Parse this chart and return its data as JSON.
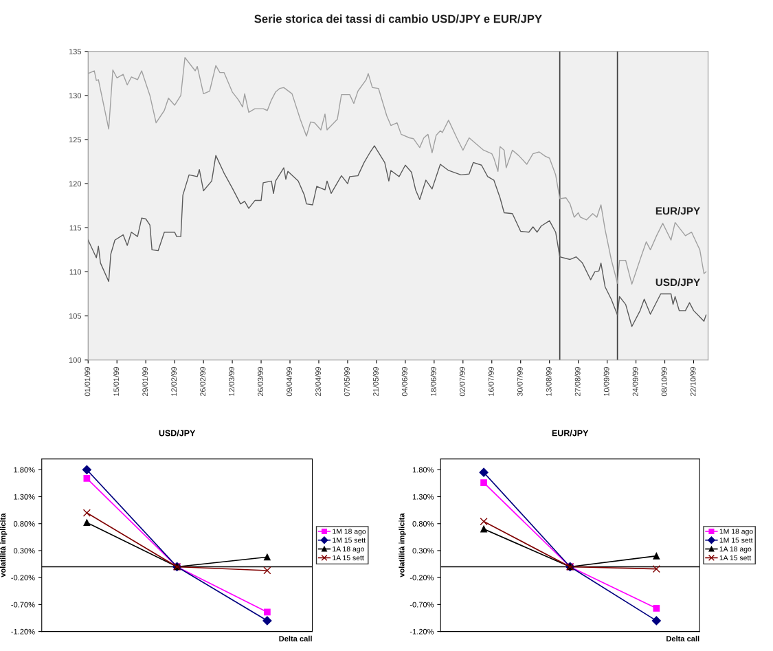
{
  "chart_data": [
    {
      "type": "line",
      "title": "Serie storica dei tassi di cambio USD/JPY e EUR/JPY",
      "grid": false,
      "legend": false,
      "marker": "none",
      "xlim": [
        "1999-01-01",
        "1999-10-29"
      ],
      "ylim": [
        100,
        135
      ],
      "yticks": [
        100,
        105,
        110,
        115,
        120,
        125,
        130,
        135
      ],
      "xticks": [
        {
          "value": "1999-01-01",
          "label": "01/01/99"
        },
        {
          "value": "1999-01-15",
          "label": "15/01/99"
        },
        {
          "value": "1999-01-29",
          "label": "29/01/99"
        },
        {
          "value": "1999-02-12",
          "label": "12/02/99"
        },
        {
          "value": "1999-02-26",
          "label": "26/02/99"
        },
        {
          "value": "1999-03-12",
          "label": "12/03/99"
        },
        {
          "value": "1999-03-26",
          "label": "26/03/99"
        },
        {
          "value": "1999-04-09",
          "label": "09/04/99"
        },
        {
          "value": "1999-04-23",
          "label": "23/04/99"
        },
        {
          "value": "1999-05-07",
          "label": "07/05/99"
        },
        {
          "value": "1999-05-21",
          "label": "21/05/99"
        },
        {
          "value": "1999-06-04",
          "label": "04/06/99"
        },
        {
          "value": "1999-06-18",
          "label": "18/06/99"
        },
        {
          "value": "1999-07-02",
          "label": "02/07/99"
        },
        {
          "value": "1999-07-16",
          "label": "16/07/99"
        },
        {
          "value": "1999-07-30",
          "label": "30/07/99"
        },
        {
          "value": "1999-08-13",
          "label": "13/08/99"
        },
        {
          "value": "1999-08-27",
          "label": "27/08/99"
        },
        {
          "value": "1999-09-10",
          "label": "10/09/99"
        },
        {
          "value": "1999-09-24",
          "label": "24/09/99"
        },
        {
          "value": "1999-10-08",
          "label": "08/10/99"
        },
        {
          "value": "1999-10-22",
          "label": "22/10/99"
        }
      ],
      "ref_lines": [
        {
          "axis": "x",
          "value": "1999-08-18",
          "label": null,
          "color": "#404040"
        },
        {
          "axis": "x",
          "value": "1999-09-15",
          "label": null,
          "color": "#404040"
        }
      ],
      "series": [
        {
          "name": "EUR/JPY",
          "color": "#a0a0a0",
          "x": [
            "1999-01-01",
            "1999-01-04",
            "1999-01-05",
            "1999-01-06",
            "1999-01-11",
            "1999-01-13",
            "1999-01-15",
            "1999-01-18",
            "1999-01-20",
            "1999-01-22",
            "1999-01-25",
            "1999-01-27",
            "1999-01-31",
            "1999-02-03",
            "1999-02-07",
            "1999-02-09",
            "1999-02-12",
            "1999-02-15",
            "1999-02-17",
            "1999-02-22",
            "1999-02-23",
            "1999-02-26",
            "1999-03-01",
            "1999-03-04",
            "1999-03-06",
            "1999-03-08",
            "1999-03-12",
            "1999-03-15",
            "1999-03-17",
            "1999-03-18",
            "1999-03-20",
            "1999-03-23",
            "1999-03-27",
            "1999-03-29",
            "1999-03-31",
            "1999-04-02",
            "1999-04-04",
            "1999-04-06",
            "1999-04-10",
            "1999-04-14",
            "1999-04-17",
            "1999-04-19",
            "1999-04-21",
            "1999-04-24",
            "1999-04-26",
            "1999-04-27",
            "1999-05-02",
            "1999-05-04",
            "1999-05-08",
            "1999-05-10",
            "1999-05-12",
            "1999-05-16",
            "1999-05-17",
            "1999-05-19",
            "1999-05-22",
            "1999-05-26",
            "1999-05-28",
            "1999-05-31",
            "1999-06-02",
            "1999-06-06",
            "1999-06-08",
            "1999-06-11",
            "1999-06-13",
            "1999-06-15",
            "1999-06-17",
            "1999-06-19",
            "1999-06-21",
            "1999-06-22",
            "1999-06-25",
            "1999-06-29",
            "1999-07-02",
            "1999-07-05",
            "1999-07-08",
            "1999-07-12",
            "1999-07-16",
            "1999-07-17",
            "1999-07-19",
            "1999-07-20",
            "1999-07-22",
            "1999-07-23",
            "1999-07-26",
            "1999-07-29",
            "1999-08-02",
            "1999-08-05",
            "1999-08-08",
            "1999-08-11",
            "1999-08-13",
            "1999-08-16",
            "1999-08-18",
            "1999-08-21",
            "1999-08-23",
            "1999-08-25",
            "1999-08-27",
            "1999-08-28",
            "1999-08-31",
            "1999-09-03",
            "1999-09-05",
            "1999-09-07",
            "1999-09-09",
            "1999-09-12",
            "1999-09-15",
            "1999-09-16",
            "1999-09-19",
            "1999-09-22",
            "1999-09-26",
            "1999-09-29",
            "1999-10-01",
            "1999-10-04",
            "1999-10-07",
            "1999-10-11",
            "1999-10-13",
            "1999-10-18",
            "1999-10-21",
            "1999-10-25",
            "1999-10-27",
            "1999-10-28"
          ],
          "values": [
            132.5,
            132.8,
            131.7,
            131.8,
            126.2,
            132.9,
            132.0,
            132.4,
            131.2,
            132.1,
            131.8,
            132.8,
            130.0,
            126.9,
            128.3,
            129.7,
            128.9,
            130.0,
            134.3,
            132.8,
            133.3,
            130.2,
            130.5,
            133.4,
            132.6,
            132.6,
            130.4,
            129.5,
            128.7,
            130.2,
            128.1,
            128.5,
            128.5,
            128.3,
            129.5,
            130.4,
            130.8,
            130.9,
            130.2,
            127.3,
            125.4,
            127.0,
            126.9,
            126.1,
            127.9,
            126.1,
            127.3,
            130.1,
            130.1,
            129.1,
            130.5,
            131.8,
            132.5,
            130.9,
            130.8,
            127.7,
            126.6,
            126.9,
            125.6,
            125.2,
            125.1,
            124.1,
            125.2,
            125.6,
            123.5,
            125.5,
            126.0,
            125.8,
            127.2,
            125.2,
            123.8,
            125.2,
            124.6,
            123.8,
            123.4,
            122.9,
            121.4,
            124.2,
            123.8,
            121.8,
            123.8,
            123.2,
            122.2,
            123.4,
            123.6,
            123.1,
            122.9,
            121.0,
            118.3,
            118.4,
            117.7,
            116.2,
            116.7,
            116.2,
            115.9,
            116.6,
            116.2,
            117.6,
            114.8,
            111.4,
            108.7,
            111.3,
            111.3,
            108.6,
            111.4,
            113.4,
            112.5,
            114.1,
            115.5,
            113.6,
            115.6,
            114.1,
            114.5,
            112.5,
            109.8,
            110.0
          ]
        },
        {
          "name": "USD/JPY",
          "color": "#5a5a5a",
          "x": [
            "1999-01-01",
            "1999-01-05",
            "1999-01-06",
            "1999-01-07",
            "1999-01-11",
            "1999-01-12",
            "1999-01-14",
            "1999-01-18",
            "1999-01-20",
            "1999-01-22",
            "1999-01-25",
            "1999-01-27",
            "1999-01-29",
            "1999-01-31",
            "1999-02-01",
            "1999-02-04",
            "1999-02-07",
            "1999-02-12",
            "1999-02-13",
            "1999-02-15",
            "1999-02-16",
            "1999-02-19",
            "1999-02-23",
            "1999-02-24",
            "1999-02-26",
            "1999-03-02",
            "1999-03-04",
            "1999-03-08",
            "1999-03-12",
            "1999-03-16",
            "1999-03-18",
            "1999-03-20",
            "1999-03-23",
            "1999-03-26",
            "1999-03-27",
            "1999-03-31",
            "1999-04-01",
            "1999-04-02",
            "1999-04-06",
            "1999-04-07",
            "1999-04-08",
            "1999-04-13",
            "1999-04-16",
            "1999-04-17",
            "1999-04-20",
            "1999-04-22",
            "1999-04-26",
            "1999-04-27",
            "1999-04-29",
            "1999-05-04",
            "1999-05-07",
            "1999-05-08",
            "1999-05-12",
            "1999-05-15",
            "1999-05-18",
            "1999-05-20",
            "1999-05-25",
            "1999-05-27",
            "1999-05-28",
            "1999-06-01",
            "1999-06-04",
            "1999-06-07",
            "1999-06-09",
            "1999-06-11",
            "1999-06-14",
            "1999-06-17",
            "1999-06-21",
            "1999-06-25",
            "1999-07-01",
            "1999-07-05",
            "1999-07-07",
            "1999-07-11",
            "1999-07-14",
            "1999-07-17",
            "1999-07-20",
            "1999-07-22",
            "1999-07-26",
            "1999-07-30",
            "1999-08-03",
            "1999-08-05",
            "1999-08-07",
            "1999-08-09",
            "1999-08-13",
            "1999-08-16",
            "1999-08-18",
            "1999-08-23",
            "1999-08-26",
            "1999-08-29",
            "1999-09-02",
            "1999-09-04",
            "1999-09-06",
            "1999-09-07",
            "1999-09-09",
            "1999-09-12",
            "1999-09-15",
            "1999-09-16",
            "1999-09-19",
            "1999-09-22",
            "1999-09-26",
            "1999-09-28",
            "1999-10-01",
            "1999-10-06",
            "1999-10-11",
            "1999-10-12",
            "1999-10-13",
            "1999-10-15",
            "1999-10-18",
            "1999-10-20",
            "1999-10-22",
            "1999-10-27",
            "1999-10-28"
          ],
          "values": [
            113.6,
            111.6,
            112.9,
            111.0,
            108.9,
            112.0,
            113.6,
            114.2,
            113.0,
            114.5,
            114.0,
            116.1,
            116.0,
            115.3,
            112.5,
            112.4,
            114.5,
            114.5,
            114.0,
            114.0,
            118.7,
            121.0,
            120.8,
            121.6,
            119.2,
            120.3,
            123.2,
            121.2,
            119.5,
            117.7,
            118.0,
            117.2,
            118.1,
            118.1,
            120.1,
            120.3,
            118.9,
            120.3,
            121.8,
            120.5,
            121.4,
            120.3,
            118.7,
            117.7,
            117.6,
            119.7,
            119.3,
            120.3,
            118.9,
            120.9,
            120.0,
            120.8,
            120.9,
            122.4,
            123.6,
            124.3,
            122.4,
            120.3,
            121.5,
            120.8,
            122.1,
            121.3,
            119.3,
            118.2,
            120.4,
            119.4,
            122.2,
            121.5,
            121.0,
            121.1,
            122.4,
            122.1,
            120.8,
            120.4,
            118.4,
            116.7,
            116.6,
            114.6,
            114.5,
            115.1,
            114.5,
            115.2,
            115.8,
            114.5,
            111.7,
            111.4,
            111.7,
            111.0,
            109.1,
            110.0,
            110.1,
            111.0,
            108.3,
            106.9,
            105.1,
            107.2,
            106.3,
            103.8,
            105.6,
            106.9,
            105.2,
            107.5,
            107.5,
            106.3,
            107.2,
            105.6,
            105.6,
            106.5,
            105.6,
            104.4,
            105.1
          ]
        }
      ]
    },
    {
      "type": "line",
      "title": "USD/JPY",
      "ylabel": "volatilità implicita",
      "xlabel": "Delta call",
      "categories": [
        null,
        null,
        null
      ],
      "grid": false,
      "legend": "right",
      "ylim": [
        -1.2,
        2.0
      ],
      "yticks": [
        {
          "value": -1.2,
          "label": "-1.20%"
        },
        {
          "value": -0.7,
          "label": "-0.70%"
        },
        {
          "value": -0.2,
          "label": "-0.20%"
        },
        {
          "value": 0.3,
          "label": "0.30%"
        },
        {
          "value": 0.8,
          "label": "0.80%"
        },
        {
          "value": 1.3,
          "label": "1.30%"
        },
        {
          "value": 1.8,
          "label": "1.80%"
        }
      ],
      "series": [
        {
          "name": "1M 18 ago",
          "color": "#ff00ff",
          "marker": "square",
          "values": [
            1.64,
            0,
            -0.84
          ]
        },
        {
          "name": "1M 15 sett",
          "color": "#000080",
          "marker": "diamond",
          "values": [
            1.8,
            0,
            -1.0
          ]
        },
        {
          "name": "1A 18 ago",
          "color": "#000000",
          "marker": "triangle",
          "values": [
            0.82,
            0,
            0.18
          ]
        },
        {
          "name": "1A 15 sett",
          "color": "#800000",
          "marker": "cross",
          "values": [
            1.0,
            0,
            -0.07
          ]
        }
      ]
    },
    {
      "type": "line",
      "title": "EUR/JPY",
      "ylabel": "volatilità implicita",
      "xlabel": "Delta call",
      "categories": [
        null,
        null,
        null
      ],
      "grid": false,
      "legend": "right",
      "ylim": [
        -1.2,
        2.0
      ],
      "yticks": [
        {
          "value": -1.2,
          "label": "-1.20%"
        },
        {
          "value": -0.7,
          "label": "-0.70%"
        },
        {
          "value": -0.2,
          "label": "-0.20%"
        },
        {
          "value": 0.3,
          "label": "0.30%"
        },
        {
          "value": 0.8,
          "label": "0.80%"
        },
        {
          "value": 1.3,
          "label": "1.30%"
        },
        {
          "value": 1.8,
          "label": "1.80%"
        }
      ],
      "series": [
        {
          "name": "1M 18 ago",
          "color": "#ff00ff",
          "marker": "square",
          "values": [
            1.56,
            0,
            -0.77
          ]
        },
        {
          "name": "1M 15 sett",
          "color": "#000080",
          "marker": "diamond",
          "values": [
            1.75,
            0,
            -1.0
          ]
        },
        {
          "name": "1A 18 ago",
          "color": "#000000",
          "marker": "triangle",
          "values": [
            0.7,
            0,
            0.2
          ]
        },
        {
          "name": "1A 15 sett",
          "color": "#800000",
          "marker": "cross",
          "values": [
            0.84,
            0,
            -0.04
          ]
        }
      ]
    }
  ]
}
